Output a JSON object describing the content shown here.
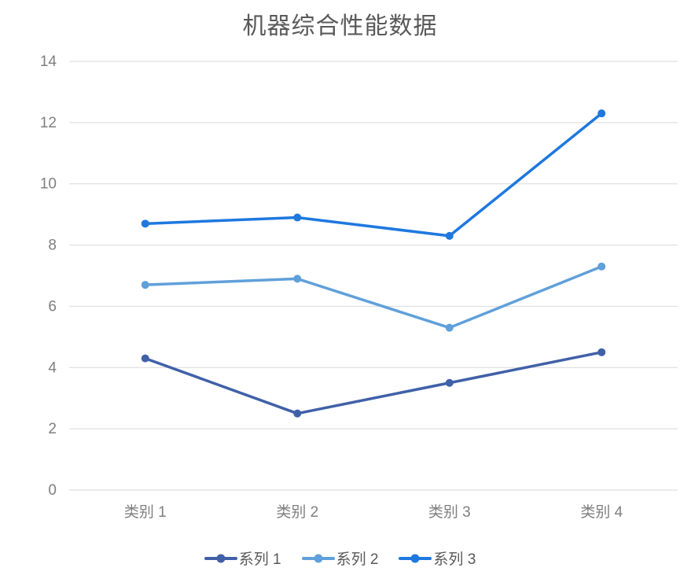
{
  "chart_data": {
    "type": "line",
    "title": "机器综合性能数据",
    "categories": [
      "类别 1",
      "类别 2",
      "类别 3",
      "类别 4"
    ],
    "series": [
      {
        "name": "系列 1",
        "color": "#4060A8",
        "values": [
          4.3,
          2.5,
          3.5,
          4.5
        ]
      },
      {
        "name": "系列 2",
        "color": "#60A0DA",
        "values": [
          6.7,
          6.9,
          5.3,
          7.3
        ]
      },
      {
        "name": "系列 3",
        "color": "#1E78DF",
        "values": [
          8.7,
          8.9,
          8.3,
          12.3
        ]
      }
    ],
    "y_ticks": [
      0,
      2,
      4,
      6,
      8,
      10,
      12,
      14
    ],
    "ylim": [
      0,
      14
    ],
    "grid": "horizontal",
    "legend_position": "bottom",
    "colors": {
      "title_text": "#595959",
      "axis_text": "#7f7f7f",
      "gridline": "#d9d9d9",
      "background": "#ffffff"
    }
  }
}
